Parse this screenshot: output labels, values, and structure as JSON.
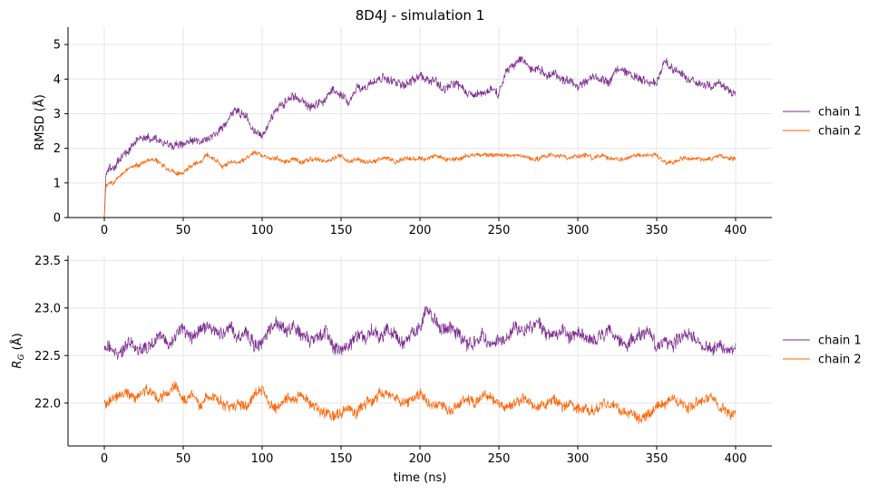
{
  "chart_data": [
    {
      "type": "line",
      "title": "8D4J - simulation 1",
      "xlabel": "",
      "ylabel": "RMSD (Å)",
      "xlim": [
        -23,
        423
      ],
      "ylim": [
        0,
        5.5
      ],
      "xticks": [
        0,
        50,
        100,
        150,
        200,
        250,
        300,
        350,
        400
      ],
      "yticks": [
        0,
        1,
        2,
        3,
        4,
        5
      ],
      "grid": true,
      "legend": "outside-right",
      "series": [
        {
          "name": "chain 1",
          "color": "#7b2d8e",
          "x": [
            0,
            1,
            3,
            6,
            10,
            15,
            20,
            25,
            30,
            35,
            40,
            45,
            50,
            55,
            60,
            65,
            70,
            75,
            80,
            85,
            90,
            95,
            100,
            105,
            110,
            115,
            120,
            125,
            130,
            135,
            140,
            145,
            150,
            155,
            160,
            165,
            170,
            175,
            180,
            185,
            190,
            195,
            200,
            205,
            210,
            215,
            220,
            225,
            230,
            235,
            240,
            245,
            250,
            255,
            260,
            265,
            270,
            275,
            280,
            285,
            290,
            295,
            300,
            305,
            310,
            315,
            320,
            325,
            330,
            335,
            340,
            345,
            350,
            355,
            360,
            365,
            370,
            375,
            380,
            385,
            390,
            395,
            400
          ],
          "y": [
            0.0,
            1.2,
            1.4,
            1.5,
            1.7,
            1.9,
            2.2,
            2.3,
            2.3,
            2.2,
            2.1,
            2.1,
            2.1,
            2.2,
            2.2,
            2.3,
            2.4,
            2.6,
            3.0,
            3.1,
            2.9,
            2.5,
            2.4,
            2.8,
            3.1,
            3.4,
            3.5,
            3.4,
            3.2,
            3.3,
            3.4,
            3.7,
            3.5,
            3.3,
            3.8,
            3.7,
            3.9,
            4.0,
            4.0,
            3.9,
            3.8,
            4.0,
            4.1,
            4.0,
            3.9,
            3.7,
            3.9,
            3.8,
            3.6,
            3.5,
            3.6,
            3.7,
            3.6,
            4.3,
            4.4,
            4.6,
            4.3,
            4.3,
            4.1,
            4.1,
            4.0,
            3.9,
            3.8,
            3.9,
            4.1,
            4.0,
            3.9,
            4.3,
            4.2,
            4.1,
            4.0,
            3.9,
            3.9,
            4.5,
            4.3,
            4.2,
            4.0,
            3.9,
            3.8,
            3.8,
            3.9,
            3.7,
            3.6
          ]
        },
        {
          "name": "chain 2",
          "color": "#ff6000",
          "x": [
            0,
            1,
            3,
            6,
            10,
            15,
            20,
            25,
            30,
            35,
            40,
            45,
            50,
            55,
            60,
            65,
            70,
            75,
            80,
            85,
            90,
            95,
            100,
            105,
            110,
            115,
            120,
            125,
            130,
            135,
            140,
            145,
            150,
            155,
            160,
            165,
            170,
            175,
            180,
            185,
            190,
            195,
            200,
            205,
            210,
            215,
            220,
            225,
            230,
            235,
            240,
            245,
            250,
            255,
            260,
            265,
            270,
            275,
            280,
            285,
            290,
            295,
            300,
            305,
            310,
            315,
            320,
            325,
            330,
            335,
            340,
            345,
            350,
            355,
            360,
            365,
            370,
            375,
            380,
            385,
            390,
            395,
            400
          ],
          "y": [
            0.0,
            0.9,
            1.0,
            1.0,
            1.2,
            1.4,
            1.5,
            1.6,
            1.7,
            1.6,
            1.4,
            1.3,
            1.3,
            1.5,
            1.6,
            1.8,
            1.7,
            1.5,
            1.6,
            1.6,
            1.7,
            1.9,
            1.8,
            1.7,
            1.7,
            1.6,
            1.7,
            1.6,
            1.7,
            1.7,
            1.6,
            1.7,
            1.8,
            1.6,
            1.7,
            1.6,
            1.6,
            1.7,
            1.7,
            1.6,
            1.7,
            1.7,
            1.7,
            1.7,
            1.8,
            1.7,
            1.7,
            1.7,
            1.8,
            1.8,
            1.8,
            1.8,
            1.8,
            1.8,
            1.8,
            1.8,
            1.7,
            1.7,
            1.8,
            1.8,
            1.8,
            1.7,
            1.8,
            1.8,
            1.7,
            1.8,
            1.7,
            1.7,
            1.7,
            1.8,
            1.8,
            1.8,
            1.8,
            1.6,
            1.6,
            1.7,
            1.7,
            1.7,
            1.7,
            1.7,
            1.8,
            1.7,
            1.7
          ]
        }
      ]
    },
    {
      "type": "line",
      "title": "",
      "xlabel": "time (ns)",
      "ylabel": "R_G (Å)",
      "xlim": [
        -23,
        423
      ],
      "ylim": [
        21.55,
        23.55
      ],
      "xticks": [
        0,
        50,
        100,
        150,
        200,
        250,
        300,
        350,
        400
      ],
      "yticks": [
        22.0,
        22.5,
        23.0,
        23.5
      ],
      "ytick_labels": [
        "22.0",
        "22.5",
        "23.0",
        "23.5"
      ],
      "grid": true,
      "legend": "outside-right",
      "series": [
        {
          "name": "chain 1",
          "color": "#7b2d8e",
          "x": [
            0,
            5,
            10,
            15,
            20,
            25,
            30,
            35,
            40,
            45,
            50,
            55,
            60,
            65,
            70,
            75,
            80,
            85,
            90,
            95,
            100,
            105,
            110,
            115,
            120,
            125,
            130,
            135,
            140,
            145,
            150,
            155,
            160,
            165,
            170,
            175,
            180,
            185,
            190,
            195,
            200,
            205,
            210,
            215,
            220,
            225,
            230,
            235,
            240,
            245,
            250,
            255,
            260,
            265,
            270,
            275,
            280,
            285,
            290,
            295,
            300,
            305,
            310,
            315,
            320,
            325,
            330,
            335,
            340,
            345,
            350,
            355,
            360,
            365,
            370,
            375,
            380,
            385,
            390,
            395,
            400
          ],
          "y": [
            22.6,
            22.55,
            22.5,
            22.65,
            22.6,
            22.55,
            22.6,
            22.7,
            22.6,
            22.7,
            22.8,
            22.7,
            22.75,
            22.8,
            22.75,
            22.7,
            22.8,
            22.7,
            22.75,
            22.6,
            22.65,
            22.8,
            22.85,
            22.75,
            22.8,
            22.7,
            22.65,
            22.7,
            22.75,
            22.6,
            22.55,
            22.6,
            22.7,
            22.65,
            22.75,
            22.7,
            22.8,
            22.7,
            22.6,
            22.75,
            22.8,
            23.0,
            22.85,
            22.75,
            22.8,
            22.7,
            22.6,
            22.65,
            22.7,
            22.6,
            22.65,
            22.7,
            22.8,
            22.75,
            22.8,
            22.85,
            22.75,
            22.7,
            22.8,
            22.7,
            22.75,
            22.7,
            22.65,
            22.7,
            22.75,
            22.7,
            22.6,
            22.65,
            22.7,
            22.75,
            22.6,
            22.65,
            22.6,
            22.7,
            22.75,
            22.65,
            22.6,
            22.55,
            22.6,
            22.55,
            22.6
          ]
        },
        {
          "name": "chain 2",
          "color": "#ff6000",
          "x": [
            0,
            5,
            10,
            15,
            20,
            25,
            30,
            35,
            40,
            45,
            50,
            55,
            60,
            65,
            70,
            75,
            80,
            85,
            90,
            95,
            100,
            105,
            110,
            115,
            120,
            125,
            130,
            135,
            140,
            145,
            150,
            155,
            160,
            165,
            170,
            175,
            180,
            185,
            190,
            195,
            200,
            205,
            210,
            215,
            220,
            225,
            230,
            235,
            240,
            245,
            250,
            255,
            260,
            265,
            270,
            275,
            280,
            285,
            290,
            295,
            300,
            305,
            310,
            315,
            320,
            325,
            330,
            335,
            340,
            345,
            350,
            355,
            360,
            365,
            370,
            375,
            380,
            385,
            390,
            395,
            400
          ],
          "y": [
            22.0,
            22.05,
            22.1,
            22.1,
            22.05,
            22.15,
            22.1,
            22.05,
            22.1,
            22.2,
            22.05,
            22.1,
            22.0,
            22.05,
            22.05,
            22.0,
            21.95,
            22.0,
            21.95,
            22.1,
            22.15,
            22.0,
            21.95,
            22.05,
            22.05,
            22.1,
            22.0,
            21.95,
            21.9,
            21.85,
            21.9,
            21.95,
            21.9,
            22.0,
            22.05,
            22.1,
            22.1,
            22.05,
            22.0,
            22.05,
            22.1,
            22.0,
            21.95,
            22.0,
            21.9,
            22.0,
            22.05,
            22.0,
            22.1,
            22.05,
            22.0,
            21.95,
            22.0,
            22.05,
            22.0,
            21.95,
            22.0,
            22.05,
            21.95,
            22.0,
            21.95,
            21.95,
            21.9,
            22.0,
            22.0,
            21.95,
            21.9,
            21.9,
            21.85,
            21.9,
            21.95,
            22.0,
            22.05,
            22.0,
            21.95,
            22.0,
            22.05,
            22.1,
            21.95,
            21.9,
            21.9
          ]
        }
      ]
    }
  ]
}
